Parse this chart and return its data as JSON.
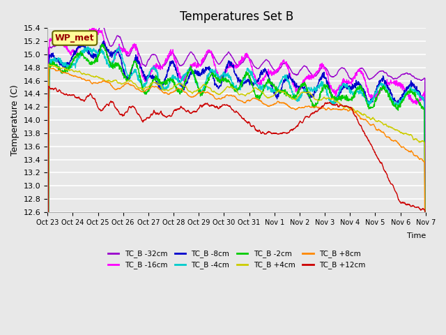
{
  "title": "Temperatures Set B",
  "xlabel": "Time",
  "ylabel": "Temperature (C)",
  "ylim": [
    12.6,
    15.4
  ],
  "series": [
    {
      "label": "TC_B -32cm",
      "color": "#9900cc"
    },
    {
      "label": "TC_B -16cm",
      "color": "#ff00ff"
    },
    {
      "label": "TC_B -8cm",
      "color": "#0000cc"
    },
    {
      "label": "TC_B -4cm",
      "color": "#00cccc"
    },
    {
      "label": "TC_B -2cm",
      "color": "#00cc00"
    },
    {
      "label": "TC_B +4cm",
      "color": "#cccc00"
    },
    {
      "label": "TC_B +8cm",
      "color": "#ff8800"
    },
    {
      "label": "TC_B +12cm",
      "color": "#cc0000"
    }
  ],
  "x_tick_labels": [
    "Oct 23",
    "Oct 24",
    "Oct 25",
    "Oct 26",
    "Oct 27",
    "Oct 28",
    "Oct 29",
    "Oct 30",
    "Oct 31",
    "Nov 1",
    "Nov 2",
    "Nov 3",
    "Nov 4",
    "Nov 5",
    "Nov 6",
    "Nov 7"
  ],
  "wp_met_annotation": "WP_met",
  "background_color": "#e8e8e8",
  "plot_bg_color": "#e8e8e8",
  "grid_color": "#ffffff",
  "lw": 1.0,
  "n_points": 1500,
  "title_fontsize": 12
}
